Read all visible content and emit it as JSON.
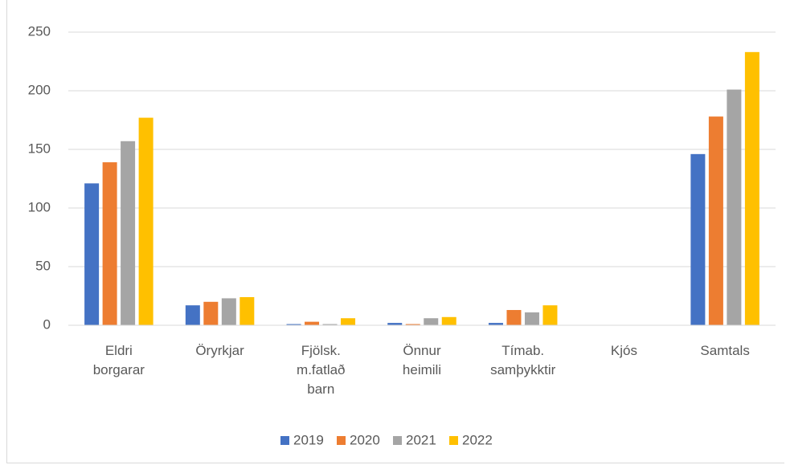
{
  "chart_data": {
    "type": "bar",
    "categories": [
      "Eldri borgarar",
      "Öryrkjar",
      "Fjölsk. m.fatlað barn",
      "Önnur heimili",
      "Tímab. samþykktir",
      "Kjós",
      "Samtals"
    ],
    "series": [
      {
        "name": "2019",
        "color": "#4472c4",
        "values": [
          121,
          17,
          1,
          2,
          2,
          0,
          146
        ]
      },
      {
        "name": "2020",
        "color": "#ed7d31",
        "values": [
          139,
          20,
          3,
          1,
          13,
          0,
          178
        ]
      },
      {
        "name": "2021",
        "color": "#a5a5a5",
        "values": [
          157,
          23,
          1,
          6,
          11,
          0,
          201
        ]
      },
      {
        "name": "2022",
        "color": "#ffc000",
        "values": [
          177,
          24,
          6,
          7,
          17,
          0,
          233
        ]
      }
    ],
    "ylim": [
      0,
      250
    ],
    "yticks": [
      0,
      50,
      100,
      150,
      200,
      250
    ],
    "grid": true,
    "legend": "bottom"
  }
}
